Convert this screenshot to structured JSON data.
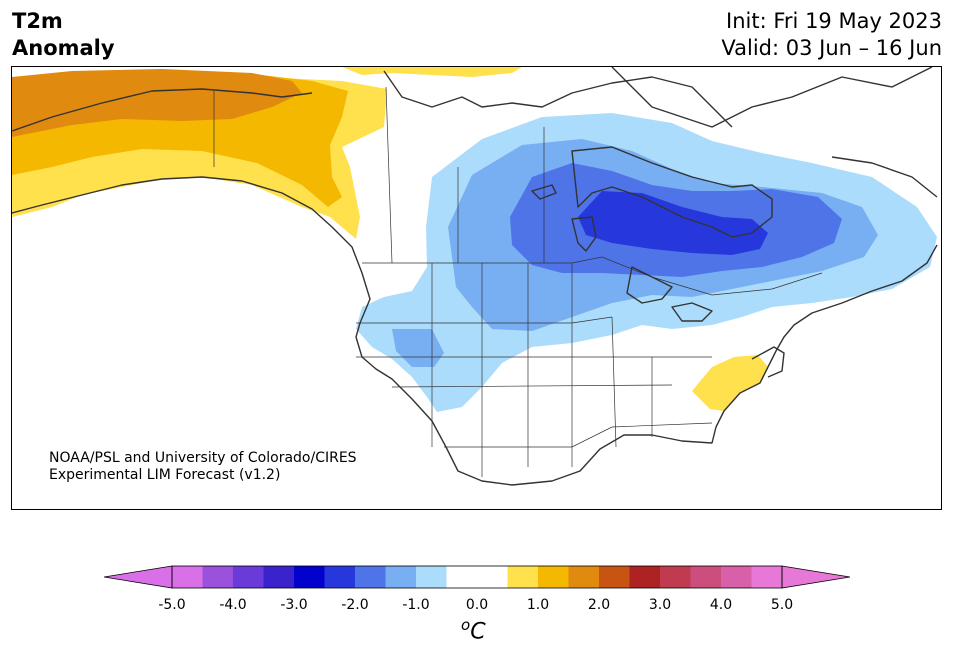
{
  "header": {
    "variable": "T2m",
    "subtitle": "Anomaly",
    "init": "Init: Fri 19 May 2023",
    "valid": "Valid: 03 Jun – 16 Jun"
  },
  "credit": {
    "line1": "NOAA/PSL and University of Colorado/CIRES",
    "line2": "Experimental LIM Forecast (v1.2)"
  },
  "colorbar": {
    "unit_base": "C",
    "unit_sup": "o",
    "levels": [
      -5.0,
      -4.5,
      -4.0,
      -3.5,
      -3.0,
      -2.5,
      -2.0,
      -1.5,
      -1.0,
      -0.5,
      0.5,
      1.0,
      1.5,
      2.0,
      2.5,
      3.0,
      3.5,
      4.0,
      4.5,
      5.0
    ],
    "under_color": "#d970e8",
    "over_color": "#e878d8",
    "colors": [
      "#d970e8",
      "#9a52dd",
      "#6a3bd8",
      "#3a23cc",
      "#0202cc",
      "#2638db",
      "#4f74e8",
      "#78aef2",
      "#acdcfb",
      "#ffffff",
      "#ffe04d",
      "#f5b800",
      "#e08a10",
      "#c85414",
      "#ad2222",
      "#c03a50",
      "#cc4e7c",
      "#d860a8",
      "#e878d8"
    ],
    "tick_labels": [
      "-5.0",
      "-4.0",
      "-3.0",
      "-2.0",
      "-1.0",
      "0.0",
      "1.0",
      "2.0",
      "3.0",
      "4.0",
      "5.0"
    ]
  }
}
